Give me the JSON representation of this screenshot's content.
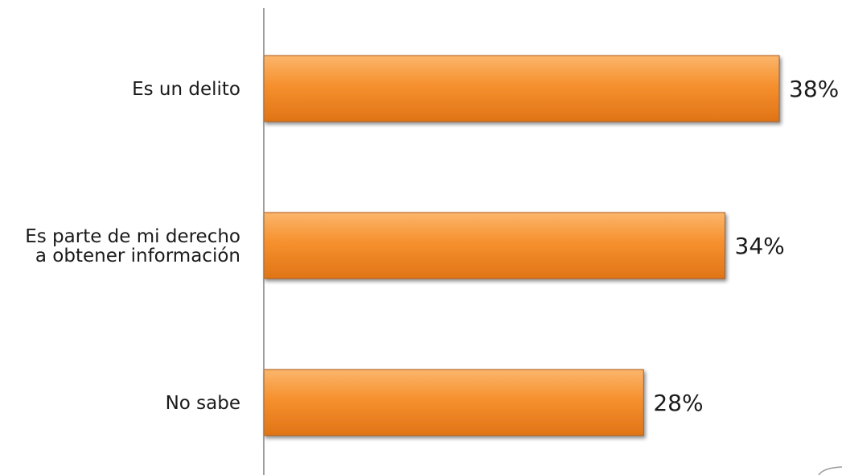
{
  "chart_data": {
    "type": "bar",
    "orientation": "horizontal",
    "title": "",
    "xlabel": "",
    "ylabel": "",
    "categories": [
      [
        "Es un delito"
      ],
      [
        "Es parte de mi derecho",
        "a obtener información"
      ],
      [
        "No sabe"
      ]
    ],
    "values": [
      38,
      34,
      28
    ],
    "value_labels": [
      "38%",
      "34%",
      "28%"
    ],
    "xlim": [
      0,
      38
    ],
    "grid": false,
    "legend": "none",
    "colors": {
      "bar_light": "#fbb56b",
      "bar_mid": "#f6902e",
      "bar_dark": "#e07416",
      "bar_edge": "#b05a12",
      "axis": "#7f7f7f"
    }
  }
}
